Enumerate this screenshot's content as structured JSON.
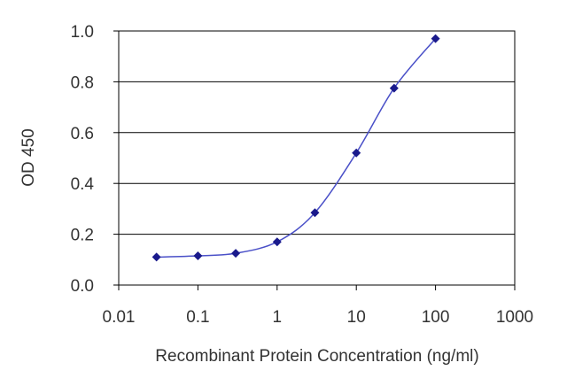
{
  "chart_data": {
    "type": "line",
    "title": "",
    "xlabel": "Recombinant Protein Concentration (ng/ml)",
    "ylabel": "OD 450",
    "x_scale": "log",
    "xlim": [
      0.01,
      1000
    ],
    "ylim": [
      0.0,
      1.0
    ],
    "x_tick_labels": [
      "0.01",
      "0.1",
      "1",
      "10",
      "100",
      "1000"
    ],
    "x_tick_values": [
      0.01,
      0.1,
      1,
      10,
      100,
      1000
    ],
    "y_tick_labels": [
      "0.0",
      "0.2",
      "0.4",
      "0.6",
      "0.8",
      "1.0"
    ],
    "y_tick_values": [
      0.0,
      0.2,
      0.4,
      0.6,
      0.8,
      1.0
    ],
    "grid": "horizontal",
    "legend": "none",
    "series": [
      {
        "x": [
          0.03,
          0.1,
          0.3,
          1,
          3,
          10,
          30,
          100
        ],
        "y": [
          0.11,
          0.115,
          0.125,
          0.17,
          0.285,
          0.52,
          0.775,
          0.97
        ]
      }
    ],
    "colors": {
      "line": "#4a50c8",
      "marker": "#1a1a8c",
      "grid": "#000000",
      "text": "#333333"
    }
  }
}
